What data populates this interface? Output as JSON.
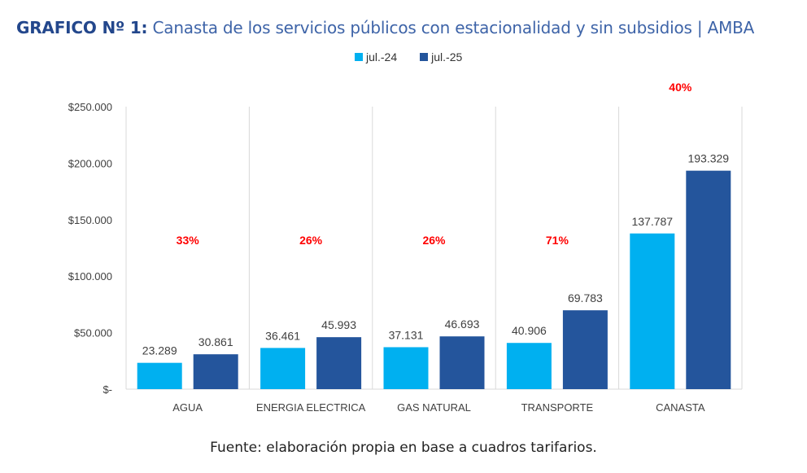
{
  "header": {
    "title_prefix": "GRAFICO Nº 1:",
    "title_text": " Canasta de los servicios públicos con estacionalidad y sin subsidios | AMBA"
  },
  "legend": [
    {
      "label": "jul.-24",
      "color": "#00b0f0"
    },
    {
      "label": "jul.-25",
      "color": "#24559c"
    }
  ],
  "footer": {
    "source": "Fuente: elaboración propia en base a cuadros tarifarios."
  },
  "chart_data": {
    "type": "bar",
    "title": "GRAFICO Nº 1: Canasta de los servicios públicos con estacionalidad y sin subsidios | AMBA",
    "xlabel": "",
    "ylabel": "",
    "categories": [
      "AGUA",
      "ENERGIA ELECTRICA",
      "GAS NATURAL",
      "TRANSPORTE",
      "CANASTA"
    ],
    "series": [
      {
        "name": "jul.-24",
        "color": "#00b0f0",
        "values": [
          23289,
          36461,
          37131,
          40906,
          137787
        ],
        "labels": [
          "23.289",
          "36.461",
          "37.131",
          "40.906",
          "137.787"
        ]
      },
      {
        "name": "jul.-25",
        "color": "#24559c",
        "values": [
          30861,
          45993,
          46693,
          69783,
          193329
        ],
        "labels": [
          "30.861",
          "45.993",
          "46.693",
          "69.783",
          "193.329"
        ]
      }
    ],
    "annotations": [
      "33%",
      "26%",
      "26%",
      "71%",
      "40%"
    ],
    "annotation_color": "#ff0000",
    "ylim": [
      0,
      250000
    ],
    "yticks": [
      0,
      50000,
      100000,
      150000,
      200000,
      250000
    ],
    "ytick_labels": [
      "$-",
      "$50.000",
      "$100.000",
      "$150.000",
      "$200.000",
      "$250.000"
    ],
    "grid": false,
    "category_separators": true,
    "legend_position": "top-center"
  }
}
